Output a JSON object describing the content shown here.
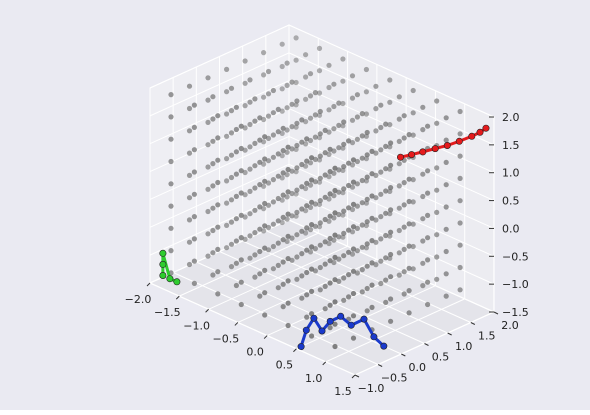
{
  "chart_data": {
    "type": "scatter",
    "projection": "3d",
    "title": "",
    "xlabel": "",
    "ylabel": "",
    "zlabel": "",
    "xlim": [
      -2.0,
      1.5
    ],
    "ylim": [
      -1.0,
      2.0
    ],
    "zlim": [
      -1.5,
      2.0
    ],
    "x_ticks": [
      "−2.0",
      "−1.5",
      "−1.0",
      "−0.5",
      "0.0",
      "0.5",
      "1.0",
      "1.5"
    ],
    "y_ticks": [
      "−1.0",
      "−0.5",
      "0.0",
      "0.5",
      "1.0",
      "1.5",
      "2.0"
    ],
    "z_ticks": [
      "−1.5",
      "−1.0",
      "−0.5",
      "0.0",
      "0.5",
      "1.0",
      "1.5",
      "2.0"
    ],
    "grid": true,
    "background_color": "#eaeaf2",
    "grid_points": {
      "color": "#6e6e6e",
      "x": [
        -1.8,
        -1.4,
        -1.0,
        -0.6,
        -0.2,
        0.2,
        0.6,
        1.0
      ],
      "y": [
        -0.8,
        -0.4,
        0.0,
        0.4,
        0.8,
        1.2,
        1.6,
        1.9
      ],
      "z": [
        -1.3,
        -0.9,
        -0.5,
        -0.1,
        0.3,
        0.7,
        1.1,
        1.5,
        1.9
      ]
    },
    "series": [
      {
        "color": "#e41a1c",
        "points": [
          [
            0.3,
            1.5,
            0.9
          ],
          [
            0.45,
            1.55,
            1.0
          ],
          [
            0.6,
            1.6,
            1.1
          ],
          [
            0.75,
            1.68,
            1.2
          ],
          [
            0.9,
            1.75,
            1.3
          ],
          [
            1.05,
            1.82,
            1.42
          ],
          [
            1.2,
            1.9,
            1.55
          ],
          [
            1.3,
            1.95,
            1.65
          ],
          [
            1.38,
            1.98,
            1.75
          ]
        ]
      },
      {
        "color": "#1a3acc",
        "points": [
          [
            0.5,
            -0.9,
            -1.5
          ],
          [
            0.55,
            -0.85,
            -1.2
          ],
          [
            0.6,
            -0.75,
            -1.0
          ],
          [
            0.7,
            -0.7,
            -1.2
          ],
          [
            0.8,
            -0.65,
            -1.0
          ],
          [
            0.9,
            -0.55,
            -0.9
          ],
          [
            1.0,
            -0.45,
            -1.05
          ],
          [
            1.1,
            -0.3,
            -0.95
          ],
          [
            1.15,
            -0.15,
            -1.3
          ],
          [
            1.2,
            0.0,
            -1.5
          ]
        ]
      },
      {
        "color": "#2ecc2e",
        "points": [
          [
            -1.82,
            -0.95,
            -1.3
          ],
          [
            -1.82,
            -0.95,
            -1.1
          ],
          [
            -1.82,
            -0.95,
            -0.9
          ],
          [
            -1.7,
            -0.95,
            -1.3
          ],
          [
            -1.58,
            -0.95,
            -1.3
          ]
        ]
      }
    ]
  }
}
